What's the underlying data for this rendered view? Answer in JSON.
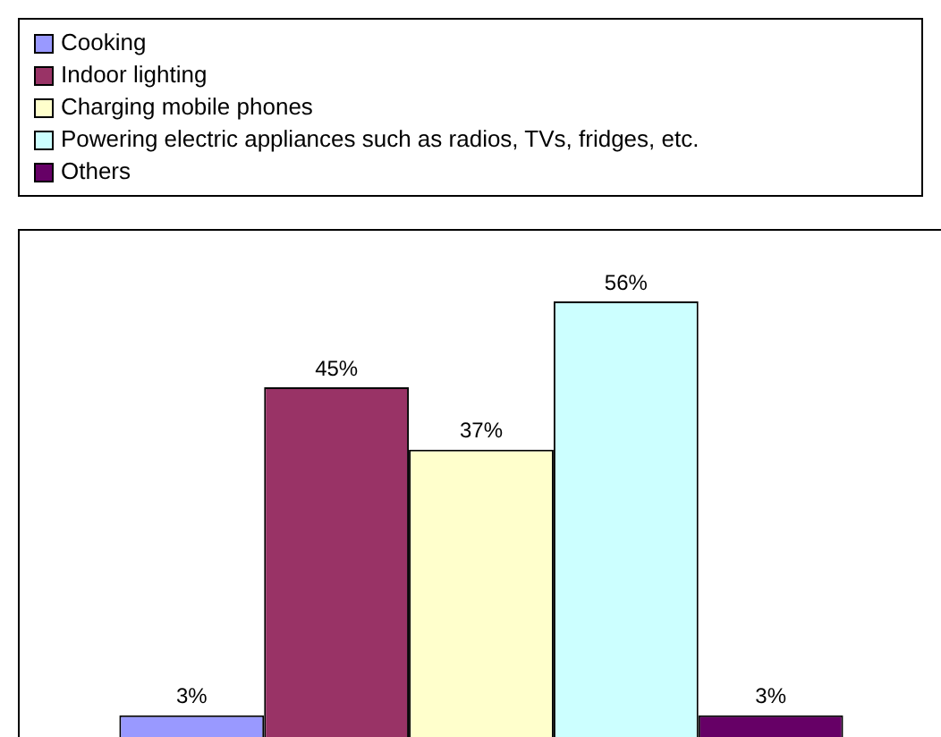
{
  "chart_data": {
    "type": "bar",
    "categories": [
      null
    ],
    "legend": "top",
    "series": [
      {
        "name": "Cooking",
        "color": "#9999ff",
        "values": [
          3
        ],
        "value_labels": [
          "3%"
        ]
      },
      {
        "name": "Indoor lighting",
        "color": "#993366",
        "values": [
          45
        ],
        "value_labels": [
          "45%"
        ]
      },
      {
        "name": "Charging mobile phones",
        "color": "#ffffcc",
        "values": [
          37
        ],
        "value_labels": [
          "37%"
        ]
      },
      {
        "name": "Powering electric appliances such as radios, TVs, fridges, etc.",
        "color": "#ccffff",
        "values": [
          56
        ],
        "value_labels": [
          "56%"
        ]
      },
      {
        "name": "Others",
        "color": "#660066",
        "values": [
          3
        ],
        "value_labels": [
          "3%"
        ]
      }
    ]
  }
}
